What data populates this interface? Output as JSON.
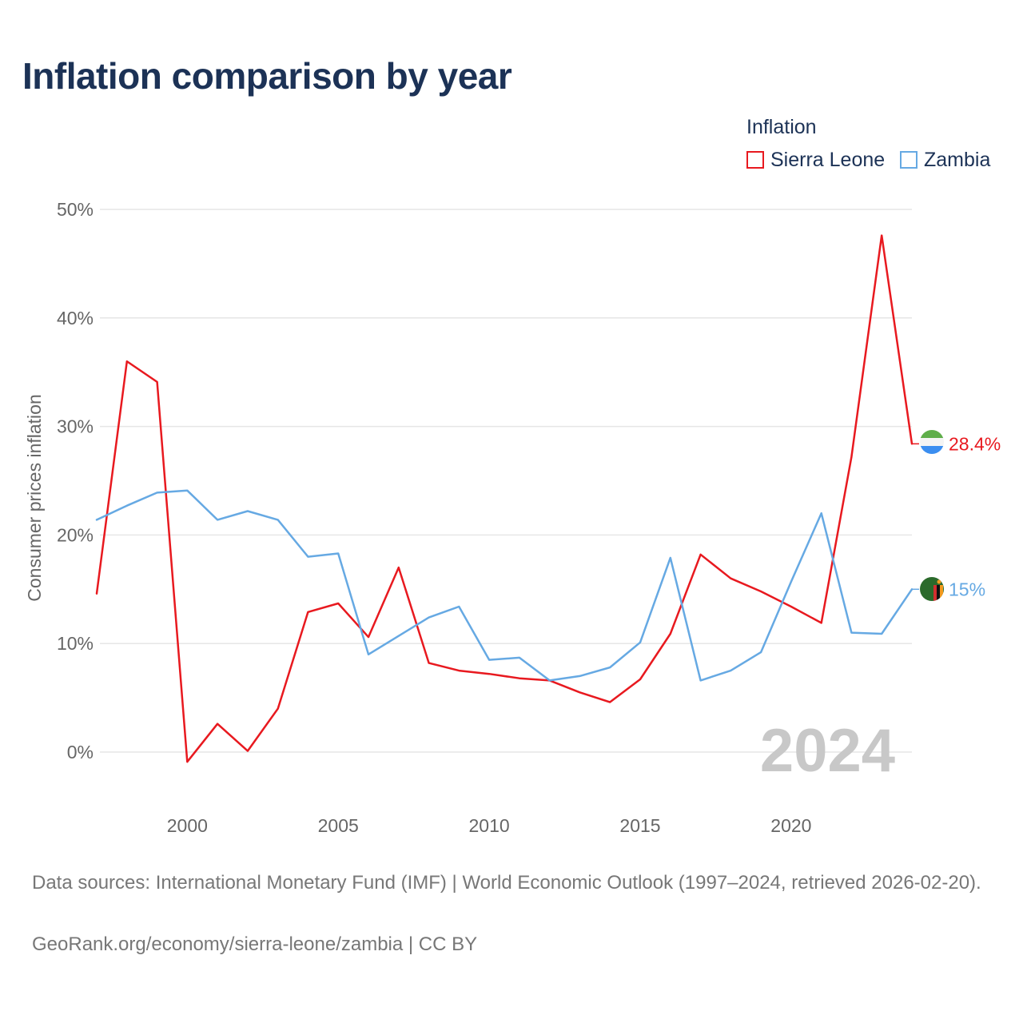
{
  "title": "Inflation comparison by year",
  "legend": {
    "title": "Inflation",
    "items": [
      {
        "name": "Sierra Leone",
        "color": "#e8191f"
      },
      {
        "name": "Zambia",
        "color": "#66a9e3"
      }
    ]
  },
  "chart_data": {
    "type": "line",
    "title": "Inflation comparison by year",
    "xlabel": "",
    "ylabel": "Consumer prices inflation",
    "xlim": [
      1997,
      2024
    ],
    "ylim": [
      -5,
      55
    ],
    "x_ticks": [
      2000,
      2005,
      2010,
      2015,
      2020
    ],
    "x_tick_labels": [
      "2000",
      "2005",
      "2010",
      "2015",
      "2020"
    ],
    "y_ticks": [
      0,
      10,
      20,
      30,
      40,
      50
    ],
    "y_tick_labels": [
      "0%",
      "10%",
      "20%",
      "30%",
      "40%",
      "50%"
    ],
    "grid": true,
    "legend_position": "top-right",
    "watermark_year": "2024",
    "x": [
      1997,
      1998,
      1999,
      2000,
      2001,
      2002,
      2003,
      2004,
      2005,
      2006,
      2007,
      2008,
      2009,
      2010,
      2011,
      2012,
      2013,
      2014,
      2015,
      2016,
      2017,
      2018,
      2019,
      2020,
      2021,
      2022,
      2023,
      2024
    ],
    "series": [
      {
        "name": "Sierra Leone",
        "color": "#e8191f",
        "values": [
          14.6,
          36.0,
          34.1,
          -0.9,
          2.6,
          0.1,
          4.0,
          12.9,
          13.7,
          10.6,
          17.0,
          8.2,
          7.5,
          7.2,
          6.8,
          6.6,
          5.5,
          4.6,
          6.7,
          10.9,
          18.2,
          16.0,
          14.8,
          13.4,
          11.9,
          27.2,
          47.6,
          28.4
        ],
        "end_label": "28.4%"
      },
      {
        "name": "Zambia",
        "color": "#66a9e3",
        "values": [
          21.4,
          22.7,
          23.9,
          24.1,
          21.4,
          22.2,
          21.4,
          18.0,
          18.3,
          9.0,
          10.7,
          12.4,
          13.4,
          8.5,
          8.7,
          6.6,
          7.0,
          7.8,
          10.1,
          17.9,
          6.6,
          7.5,
          9.2,
          15.7,
          22.0,
          11.0,
          10.9,
          15.0
        ],
        "end_label": "15%"
      }
    ]
  },
  "footer": {
    "sources": "Data sources: International Monetary Fund (IMF) | World Economic Outlook (1997–2024, retrieved 2026-02-20).",
    "credit": "GeoRank.org/economy/sierra-leone/zambia | CC BY"
  }
}
